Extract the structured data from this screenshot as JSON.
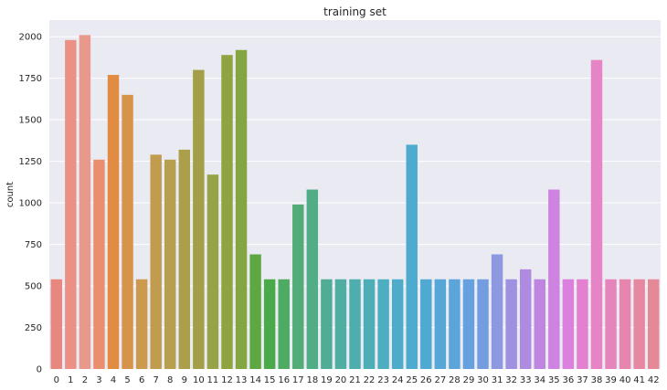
{
  "chart_data": {
    "type": "bar",
    "title": "training set",
    "xlabel": "",
    "ylabel": "count",
    "ylim": [
      0,
      2100
    ],
    "yticks": [
      0,
      250,
      500,
      750,
      1000,
      1250,
      1500,
      1750,
      2000
    ],
    "grid": true,
    "categories": [
      "0",
      "1",
      "2",
      "3",
      "4",
      "5",
      "6",
      "7",
      "8",
      "9",
      "10",
      "11",
      "12",
      "13",
      "14",
      "15",
      "16",
      "17",
      "18",
      "19",
      "20",
      "21",
      "22",
      "23",
      "24",
      "25",
      "26",
      "27",
      "28",
      "29",
      "30",
      "31",
      "32",
      "33",
      "34",
      "35",
      "36",
      "37",
      "38",
      "39",
      "40",
      "41",
      "42"
    ],
    "values": [
      540,
      1980,
      2010,
      1260,
      1770,
      1650,
      540,
      1290,
      1260,
      1320,
      1800,
      1170,
      1890,
      1920,
      690,
      540,
      540,
      990,
      1080,
      540,
      540,
      540,
      540,
      540,
      540,
      1350,
      540,
      540,
      540,
      540,
      540,
      690,
      540,
      600,
      540,
      1080,
      540,
      540,
      1860,
      540,
      540,
      540,
      540
    ],
    "colors": [
      "#e8877f",
      "#ea9084",
      "#e8998b",
      "#e98f6d",
      "#e28b43",
      "#d6944a",
      "#cd9a4d",
      "#c29c4e",
      "#b69f4e",
      "#ab9f4c",
      "#a29f48",
      "#98a345",
      "#8fa441",
      "#84a640",
      "#5da842",
      "#4aaa4a",
      "#4eab63",
      "#51ac77",
      "#50ad86",
      "#4fad95",
      "#4faea2",
      "#4eaeae",
      "#4eaeb8",
      "#4eaec1",
      "#4cacca",
      "#4dabcf",
      "#50a9d3",
      "#56a7d7",
      "#5ca5db",
      "#65a1df",
      "#749ddf",
      "#8d98e1",
      "#a091e0",
      "#ae8be0",
      "#be86e0",
      "#cd83df",
      "#dc80dd",
      "#e380d0",
      "#e784c6",
      "#e685bb",
      "#e686ae",
      "#e688a1",
      "#e68996"
    ]
  }
}
